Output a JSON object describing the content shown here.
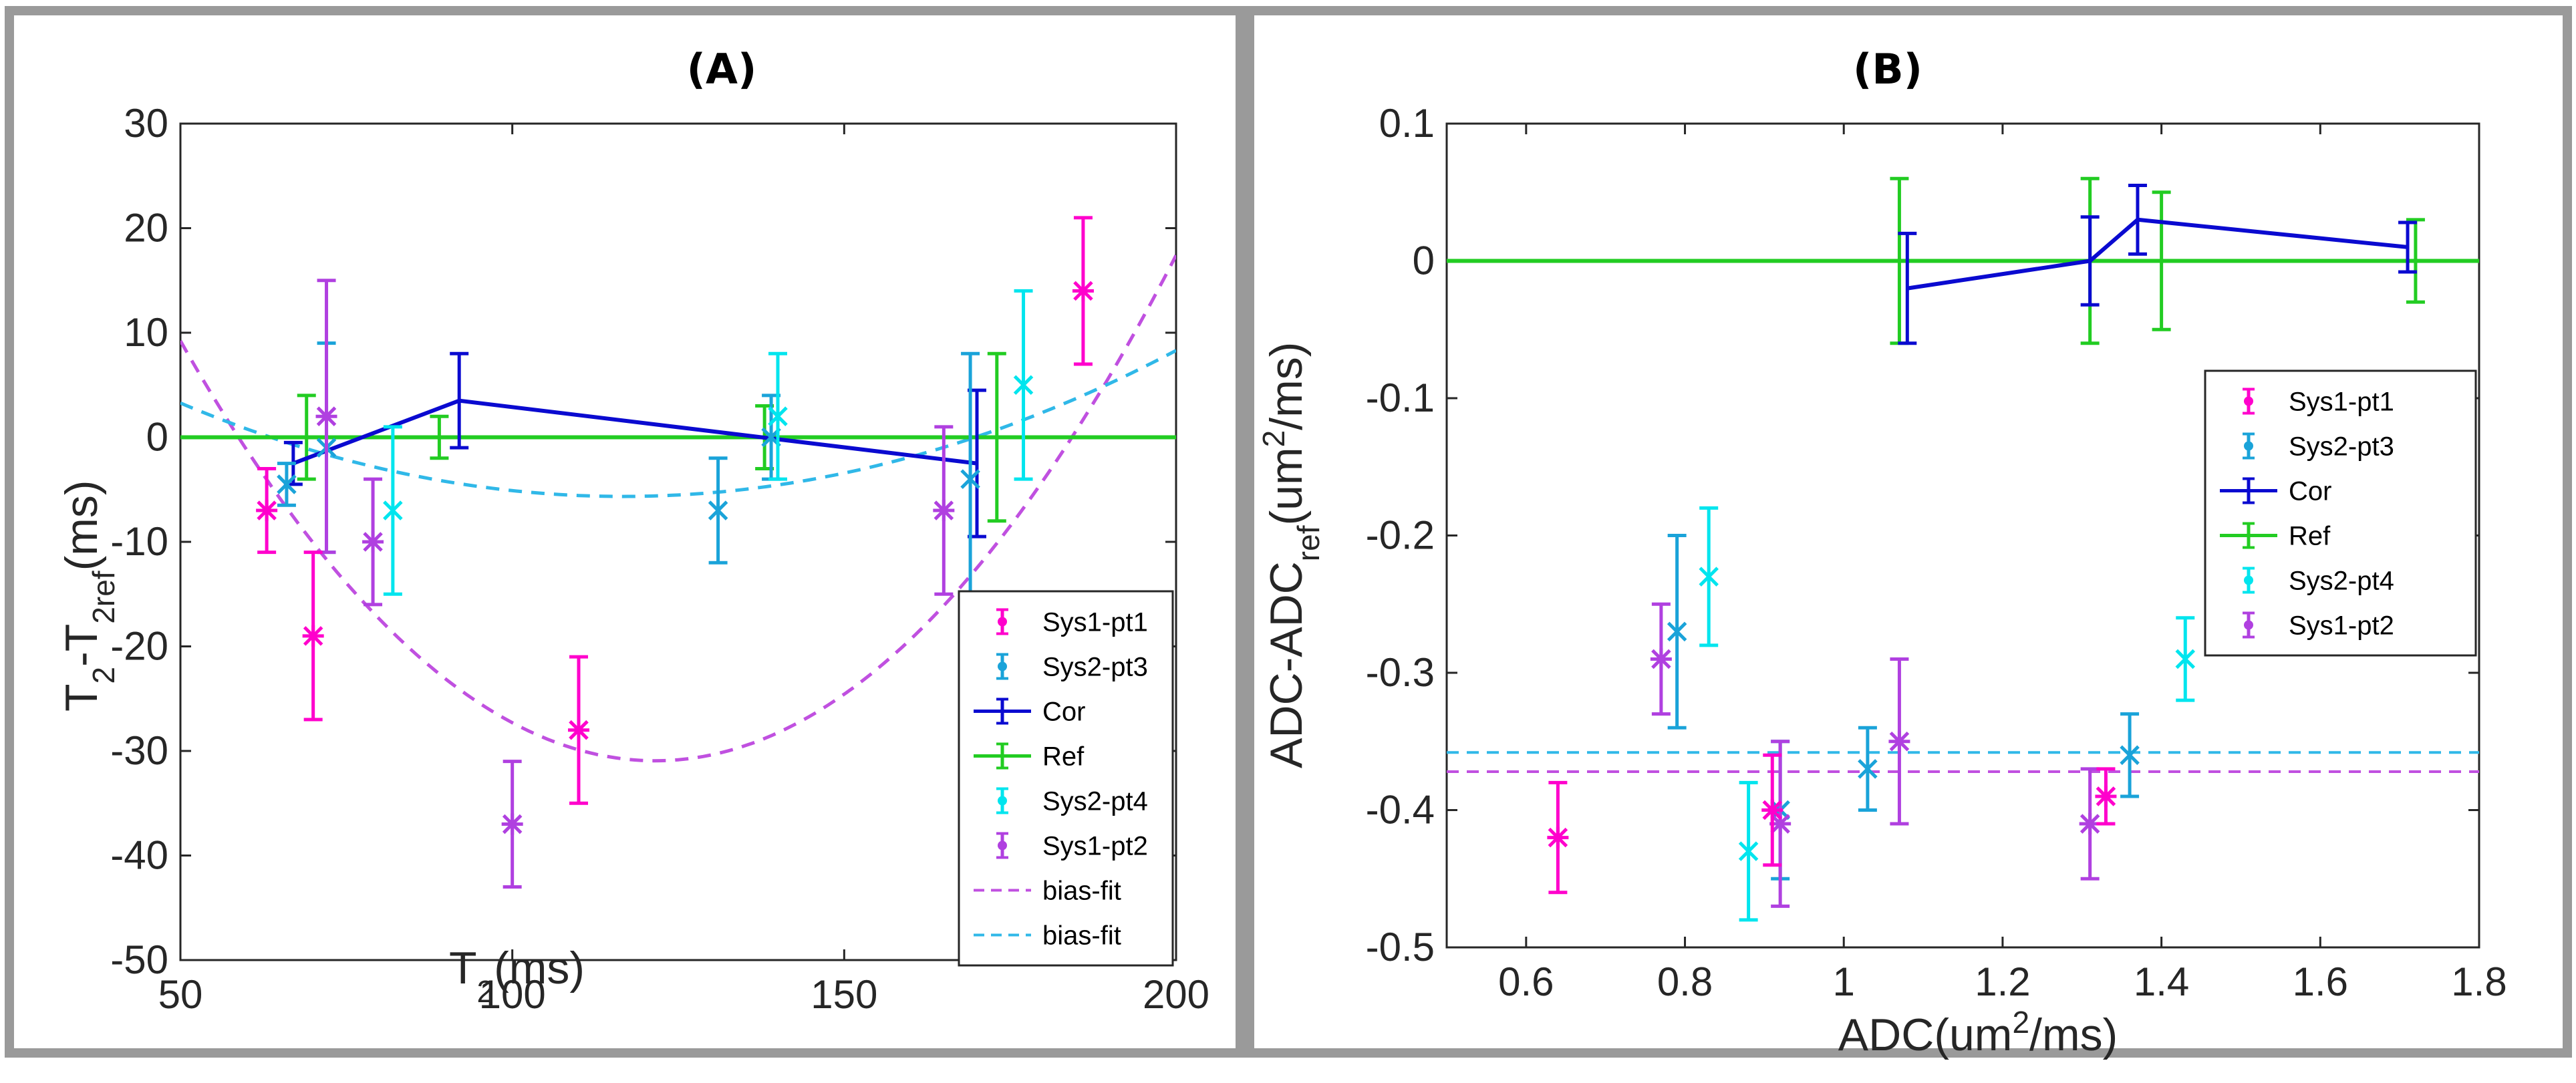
{
  "chart_data": [
    {
      "type": "scatter",
      "title": "(A)",
      "xlabel": {
        "main": "T",
        "sub": "2",
        "unit": "(ms)"
      },
      "ylabel": {
        "p1": "T",
        "s1": "2",
        "p2": "-T",
        "s2": "2ref",
        "p3": "(ms)"
      },
      "xlim": [
        50,
        200
      ],
      "ylim": [
        -50,
        30
      ],
      "xticks": [
        50,
        100,
        150,
        200
      ],
      "yticks": [
        -50,
        -40,
        -30,
        -20,
        -10,
        0,
        10,
        20,
        30
      ],
      "colors": {
        "Sys1-pt1": "#ff00cc",
        "Sys2-pt3": "#1aa3d9",
        "Cor": "#0a0ad0",
        "Ref": "#22cc22",
        "Sys2-pt4": "#00e5ee",
        "Sys1-pt2": "#b040e0"
      },
      "series": [
        {
          "name": "Sys1-pt1",
          "style": "star",
          "points": [
            [
              63,
              -7,
              4
            ],
            [
              70,
              -19,
              8
            ],
            [
              110,
              -28,
              7
            ],
            [
              186,
              14,
              7
            ]
          ]
        },
        {
          "name": "Sys2-pt3",
          "style": "x",
          "points": [
            [
              66,
              -4.5,
              2
            ],
            [
              72,
              -1,
              10
            ],
            [
              131,
              -7,
              5
            ],
            [
              139,
              0,
              4
            ],
            [
              169,
              -4,
              12
            ]
          ]
        },
        {
          "name": "Cor",
          "style": "line",
          "points": [
            [
              67,
              -2.5,
              2
            ],
            [
              92,
              3.5,
              4.5
            ],
            [
              170,
              -2.5,
              7
            ]
          ]
        },
        {
          "name": "Ref",
          "style": "line",
          "points": [
            [
              50,
              0,
              null
            ],
            [
              69,
              0,
              4
            ],
            [
              89,
              0,
              2
            ],
            [
              138,
              0,
              3
            ],
            [
              173,
              0,
              8
            ],
            [
              200,
              0,
              null
            ]
          ]
        },
        {
          "name": "Sys2-pt4",
          "style": "x",
          "points": [
            [
              82,
              -7,
              8
            ],
            [
              140,
              2,
              6
            ],
            [
              177,
              5,
              9
            ]
          ]
        },
        {
          "name": "Sys1-pt2",
          "style": "star",
          "points": [
            [
              72,
              2,
              13
            ],
            [
              79,
              -10,
              6
            ],
            [
              100,
              -37,
              6
            ],
            [
              165,
              -7,
              8
            ]
          ]
        }
      ],
      "fits": [
        {
          "name": "bias-fit",
          "color": "#c050e0",
          "coef": [
            0.00785,
            -1.908,
            85.0
          ]
        },
        {
          "name": "bias-fit",
          "color": "#30b8e8",
          "coef": [
            0.00201,
            -0.469,
            21.7
          ]
        }
      ],
      "legend": [
        "Sys1-pt1",
        "Sys2-pt3",
        "Cor",
        "Ref",
        "Sys2-pt4",
        "Sys1-pt2",
        "bias-fit",
        "bias-fit"
      ],
      "legend_loc": "bottom-right"
    },
    {
      "type": "scatter",
      "title": "(B)",
      "xlabel": {
        "p1": "ADC(um",
        "sup": "2",
        "p2": "/ms)"
      },
      "ylabel": {
        "p1": "ADC-ADC",
        "sub": "ref",
        "p2": "(um",
        "sup": "2",
        "p3": "/ms)"
      },
      "xlim": [
        0.5,
        1.8
      ],
      "ylim": [
        -0.5,
        0.1
      ],
      "xticks": [
        "0.6",
        "0.8",
        "1",
        "1.2",
        "1.4",
        "1.6",
        "1.8"
      ],
      "yticks": [
        "-0.5",
        "-0.4",
        "-0.3",
        "-0.2",
        "-0.1",
        "0",
        "0.1"
      ],
      "colors": {
        "Sys1-pt1": "#ff00cc",
        "Sys2-pt3": "#1aa3d9",
        "Cor": "#0a0ad0",
        "Ref": "#22cc22",
        "Sys2-pt4": "#00e5ee",
        "Sys1-pt2": "#b040e0"
      },
      "series": [
        {
          "name": "Sys1-pt1",
          "style": "star",
          "points": [
            [
              0.64,
              -0.42,
              0.04
            ],
            [
              0.91,
              -0.4,
              0.04
            ],
            [
              1.33,
              -0.39,
              0.02
            ]
          ]
        },
        {
          "name": "Sys2-pt3",
          "style": "x",
          "points": [
            [
              0.79,
              -0.27,
              0.07
            ],
            [
              0.92,
              -0.4,
              0.05
            ],
            [
              1.03,
              -0.37,
              0.03
            ],
            [
              1.36,
              -0.36,
              0.03
            ]
          ]
        },
        {
          "name": "Cor",
          "style": "line",
          "points": [
            [
              1.08,
              -0.02,
              0.04
            ],
            [
              1.31,
              0.0,
              0.032
            ],
            [
              1.37,
              0.03,
              0.025
            ],
            [
              1.71,
              0.01,
              0.018
            ]
          ]
        },
        {
          "name": "Ref",
          "style": "line",
          "points": [
            [
              0.5,
              0.0,
              null
            ],
            [
              1.07,
              0.0,
              0.06
            ],
            [
              1.31,
              0.0,
              0.06
            ],
            [
              1.4,
              0.0,
              0.05
            ],
            [
              1.72,
              0.0,
              0.03
            ],
            [
              1.8,
              0.0,
              null
            ]
          ]
        },
        {
          "name": "Sys2-pt4",
          "style": "x",
          "points": [
            [
              0.83,
              -0.23,
              0.05
            ],
            [
              0.88,
              -0.43,
              0.05
            ],
            [
              1.43,
              -0.29,
              0.03
            ]
          ]
        },
        {
          "name": "Sys1-pt2",
          "style": "star",
          "points": [
            [
              0.77,
              -0.29,
              0.04
            ],
            [
              0.92,
              -0.41,
              0.06
            ],
            [
              1.07,
              -0.35,
              0.06
            ],
            [
              1.31,
              -0.41,
              0.04
            ]
          ]
        }
      ],
      "hlines": [
        {
          "name": "bias-fit",
          "color": "#30b8e8",
          "y": -0.358
        },
        {
          "name": "bias-fit",
          "color": "#c050e0",
          "y": -0.372
        }
      ],
      "legend": [
        "Sys1-pt1",
        "Sys2-pt3",
        "Cor",
        "Ref",
        "Sys2-pt4",
        "Sys1-pt2"
      ],
      "legend_loc": "center-right"
    }
  ]
}
